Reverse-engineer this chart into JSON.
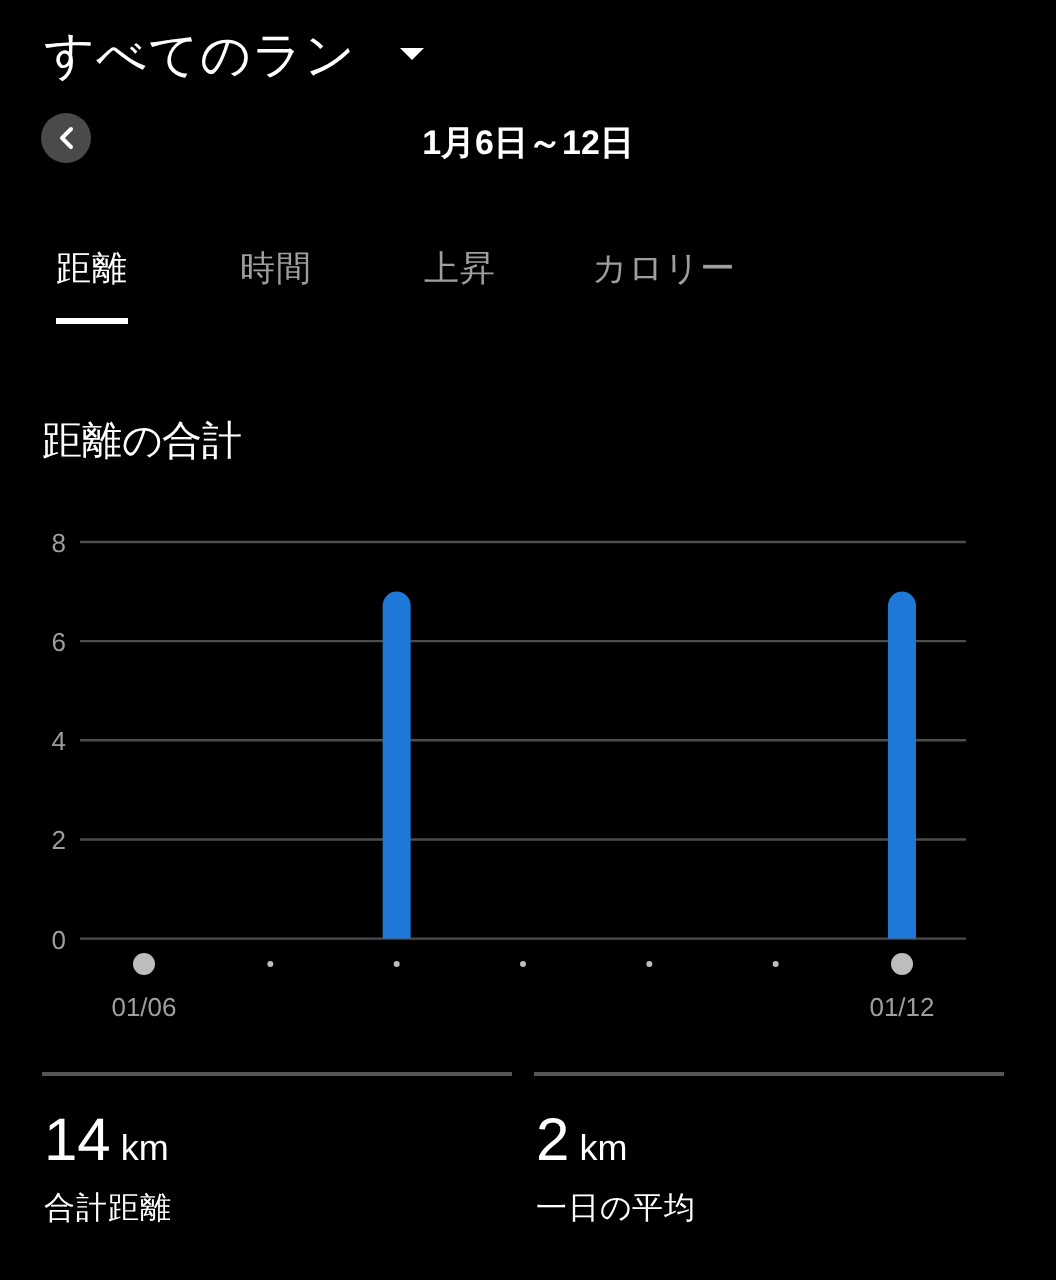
{
  "chart_data": {
    "type": "bar",
    "title": "距離の合計",
    "categories": [
      "01/06",
      null,
      null,
      null,
      null,
      null,
      "01/12"
    ],
    "values": [
      0,
      0,
      7,
      0,
      0,
      0,
      7
    ],
    "color": "#1e78d8",
    "ylim": [
      0,
      8
    ],
    "yticks": [
      0,
      2,
      4,
      6,
      8
    ],
    "grid": "y",
    "annotations": [
      "すべてのラン",
      "1月6日～12日",
      "距離",
      "時間",
      "上昇",
      "カロリー",
      "14",
      "km",
      "合計距離",
      "2",
      "km",
      "一日の平均"
    ]
  }
}
